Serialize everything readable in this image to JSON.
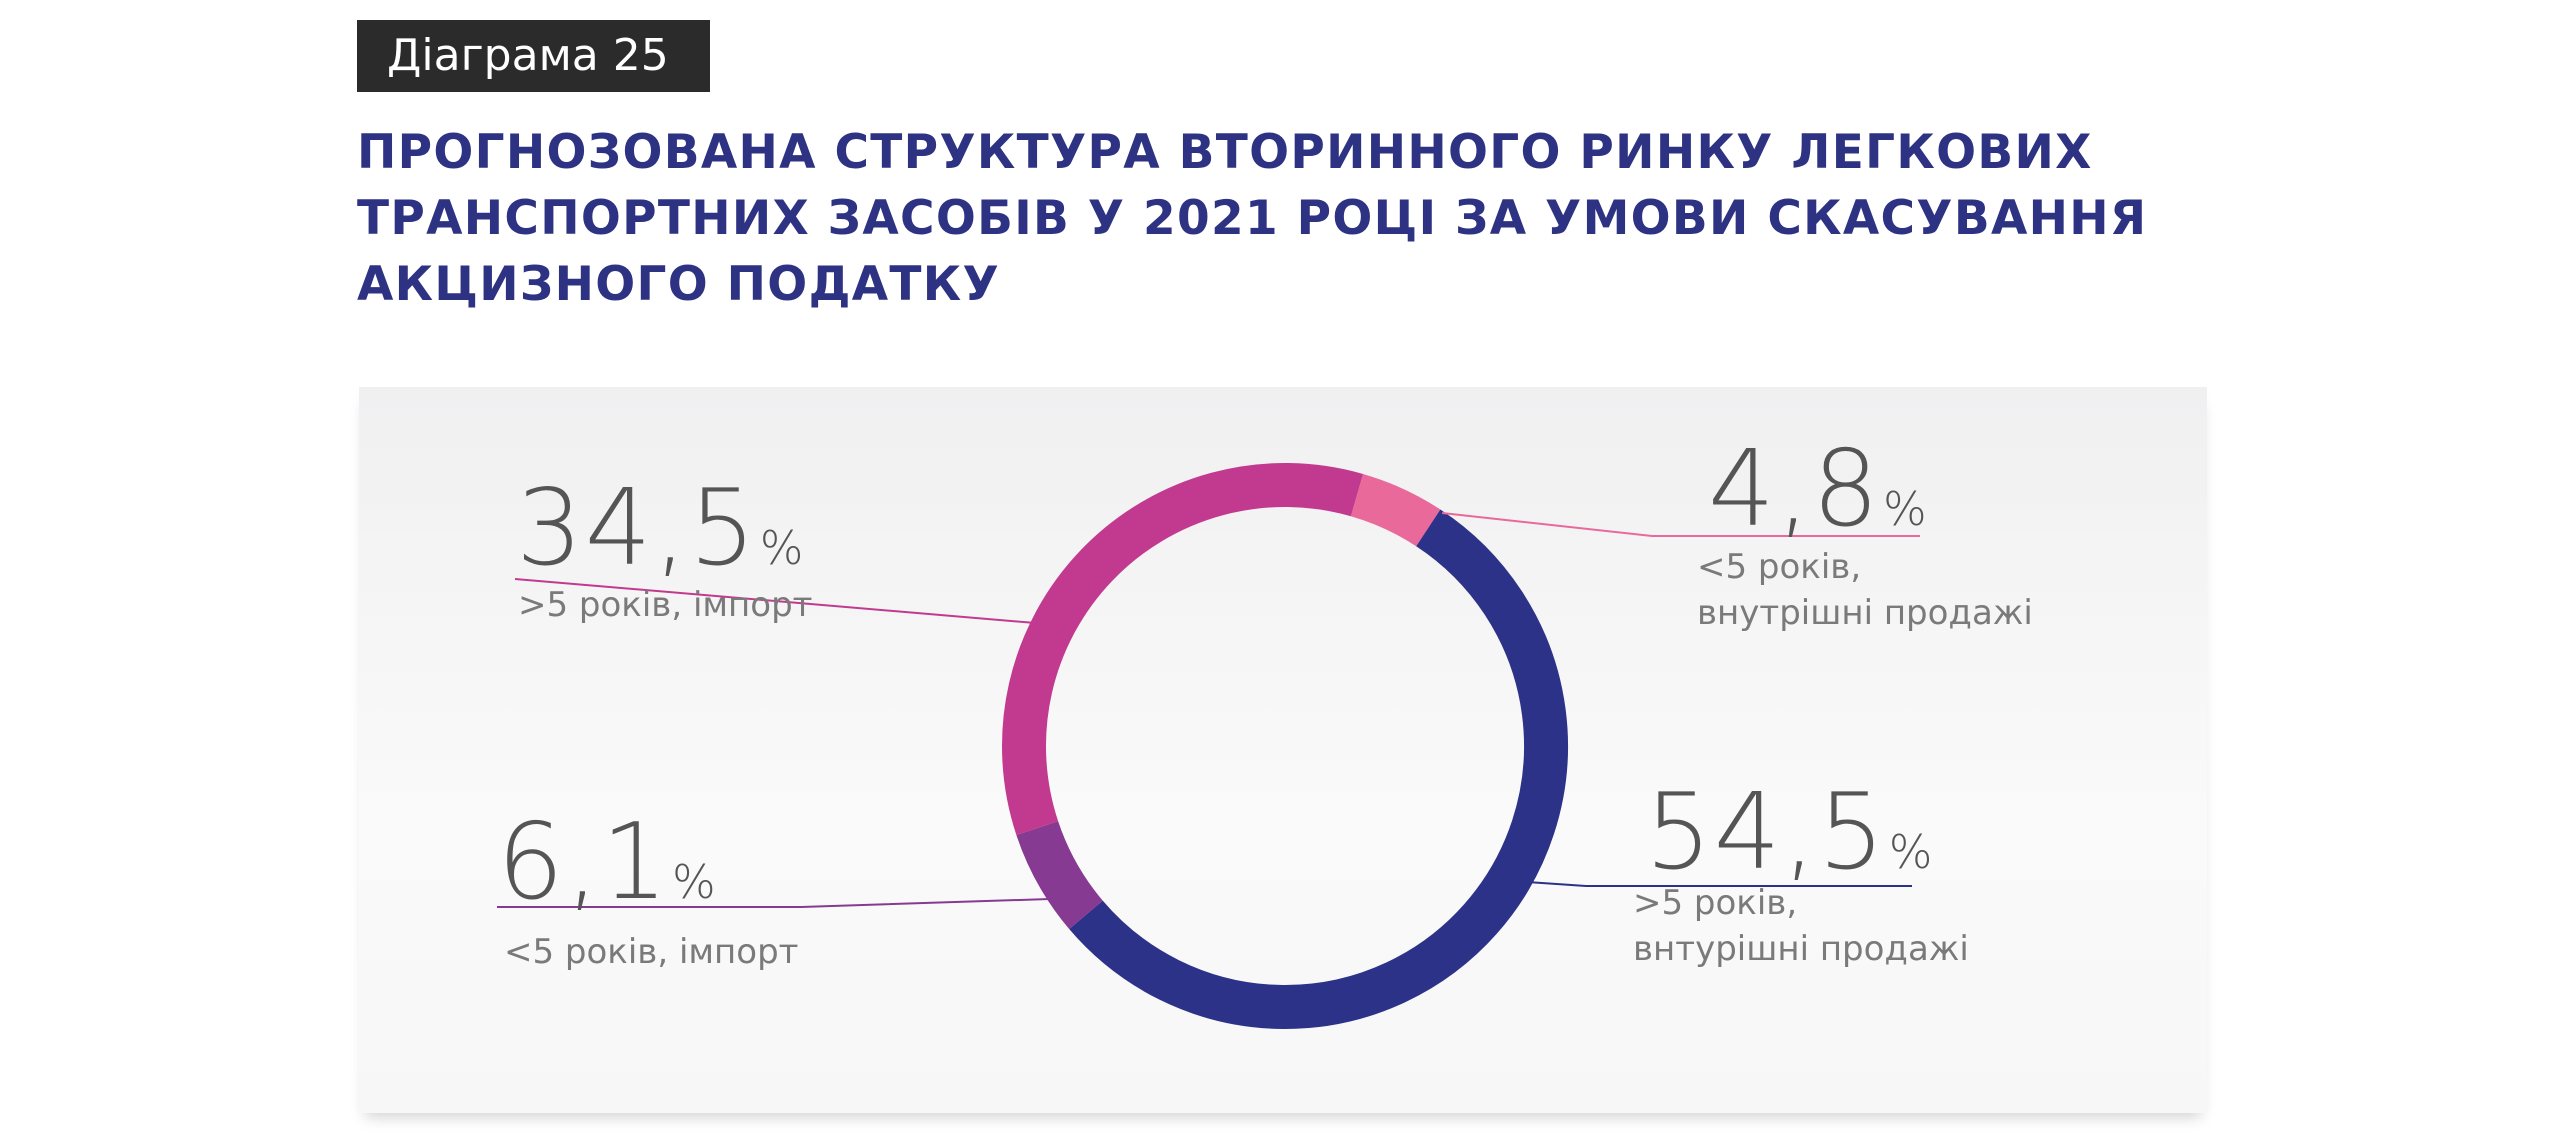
{
  "header": {
    "badge": "Діаграма 25",
    "title_lines": [
      "ПРОГНОЗОВАНА СТРУКТУРА ВТОРИННОГО РИНКУ ЛЕГКОВИХ",
      "ТРАНСПОРТНИХ ЗАСОБІВ У 2021 РОЦІ ЗА УМОВИ СКАСУВАННЯ",
      "АКЦИЗНОГО ПОДАТКУ"
    ]
  },
  "chart_data": {
    "type": "pie",
    "variant": "donut",
    "title": "ПРОГНОЗОВАНА СТРУКТУРА ВТОРИННОГО РИНКУ ЛЕГКОВИХ ТРАНСПОРТНИХ ЗАСОБІВ У 2021 РОЦІ ЗА УМОВИ СКАСУВАННЯ АКЦИЗНОГО ПОДАТКУ",
    "unit": "%",
    "slices": [
      {
        "value_text": "4,8",
        "value": 4.8,
        "label_lines": [
          "<5 років,",
          "внутрішні продажі"
        ],
        "color": "#e8699a"
      },
      {
        "value_text": "54,5",
        "value": 54.5,
        "label_lines": [
          ">5 років,",
          "внтурішні продажі"
        ],
        "color": "#2d3289"
      },
      {
        "value_text": "6,1",
        "value": 6.1,
        "label_lines": [
          "<5 років, імпорт"
        ],
        "color": "#863a92"
      },
      {
        "value_text": "34,5",
        "value": 34.5,
        "label_lines": [
          ">5 років, імпорт"
        ],
        "color": "#c23a8f"
      }
    ]
  }
}
